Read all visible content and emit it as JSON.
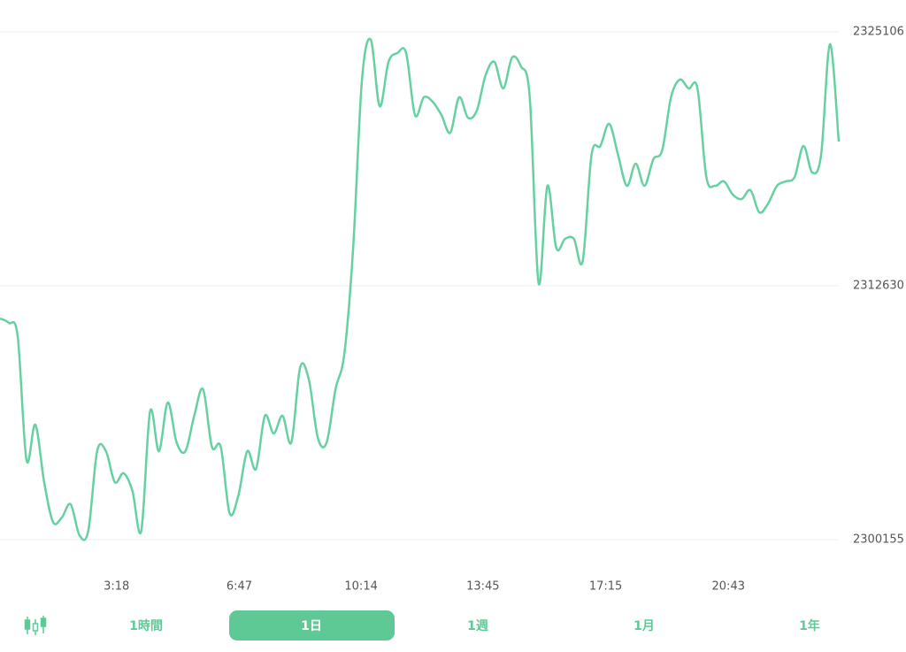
{
  "chart_data": {
    "type": "line",
    "color": "#66d1a0",
    "ylim": [
      2300155,
      2325106
    ],
    "yticks": [
      2300155,
      2312630,
      2325106
    ],
    "xlim": [
      0,
      95
    ],
    "xticks": [
      {
        "value": 13.2,
        "label": "3:18"
      },
      {
        "value": 27.1,
        "label": "6:47"
      },
      {
        "value": 40.9,
        "label": "10:14"
      },
      {
        "value": 54.7,
        "label": "13:45"
      },
      {
        "value": 68.6,
        "label": "17:15"
      },
      {
        "value": 82.5,
        "label": "20:43"
      }
    ],
    "grid": true,
    "values": [
      2311022,
      2310804,
      2310152,
      2304067,
      2305805,
      2302980,
      2301024,
      2301241,
      2301893,
      2300372,
      2300589,
      2304501,
      2304501,
      2302980,
      2303414,
      2302545,
      2300589,
      2306457,
      2304501,
      2306892,
      2304936,
      2304501,
      2306240,
      2307544,
      2304719,
      2304719,
      2301458,
      2302328,
      2304501,
      2303632,
      2306240,
      2305371,
      2306240,
      2304936,
      2308631,
      2307979,
      2305153,
      2304936,
      2307544,
      2309283,
      2314499,
      2322759,
      2324715,
      2321455,
      2323628,
      2324063,
      2324063,
      2321020,
      2321889,
      2321672,
      2321020,
      2320150,
      2321889,
      2320889,
      2321237,
      2322976,
      2323628,
      2322324,
      2323845,
      2323411,
      2321889,
      2312761,
      2317542,
      2314499,
      2314934,
      2314934,
      2313847,
      2319064,
      2319498,
      2320585,
      2319064,
      2317542,
      2318629,
      2317542,
      2318846,
      2319281,
      2321889,
      2322759,
      2322324,
      2322324,
      2317977,
      2317542,
      2317760,
      2317108,
      2316890,
      2317325,
      2316238,
      2316673,
      2317542,
      2317760,
      2317977,
      2319498,
      2318194,
      2319064,
      2324497,
      2319716
    ]
  },
  "range_buttons": [
    "1時間",
    "1日",
    "1週",
    "1月",
    "1年"
  ]
}
